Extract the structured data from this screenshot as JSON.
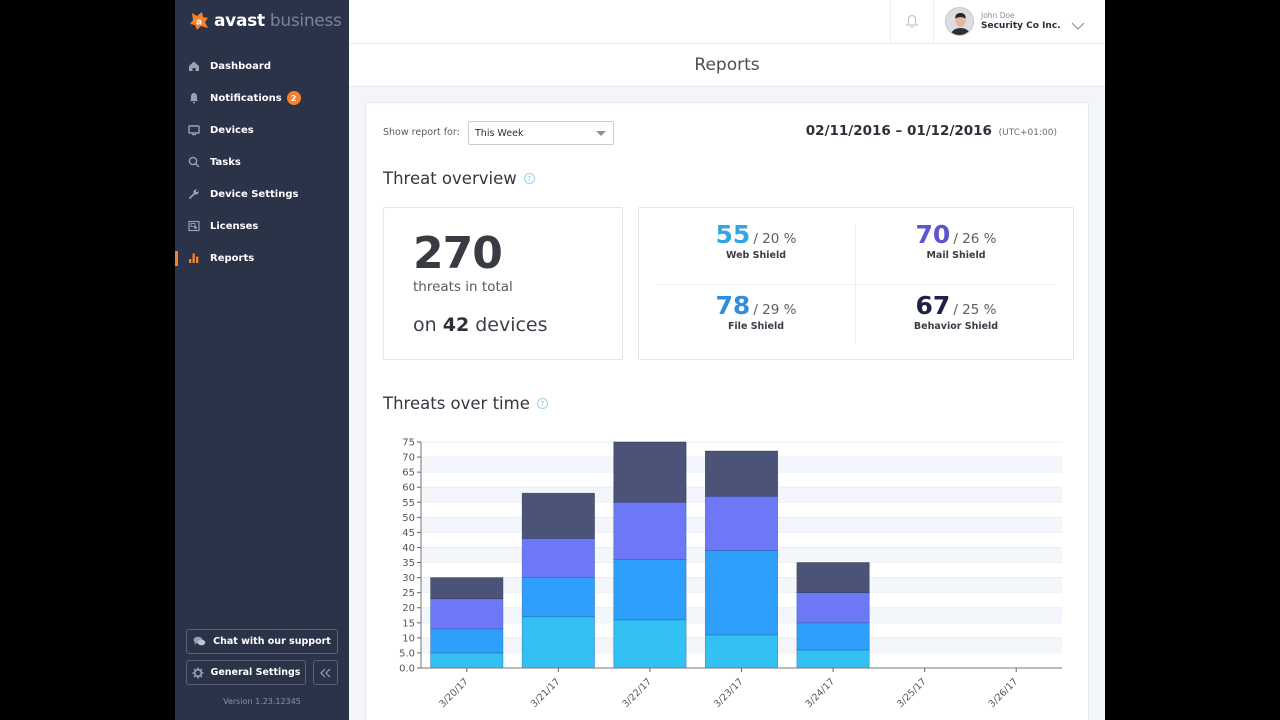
{
  "brand": {
    "name_part1": "avast",
    "name_part2": " business",
    "logo_letter": "a"
  },
  "sidebar": {
    "items": [
      {
        "label": "Dashboard",
        "icon": "home-icon",
        "active": false
      },
      {
        "label": "Notifications",
        "icon": "bell-icon",
        "active": false,
        "badge": "2"
      },
      {
        "label": "Devices",
        "icon": "monitor-icon",
        "active": false
      },
      {
        "label": "Tasks",
        "icon": "search-icon",
        "active": false
      },
      {
        "label": "Device Settings",
        "icon": "wrench-icon",
        "active": false
      },
      {
        "label": "Licenses",
        "icon": "license-icon",
        "active": false
      },
      {
        "label": "Reports",
        "icon": "bar-chart-icon",
        "active": true
      }
    ],
    "chat_button": "Chat with our support",
    "settings_button": "General Settings",
    "collapse_icon": "double-chevron-left-icon",
    "version": "Version 1.23.12345"
  },
  "topbar": {
    "user_name": "John Doe",
    "user_org": "Security Co Inc."
  },
  "page": {
    "title": "Reports"
  },
  "filter": {
    "label": "Show report for:",
    "selected": "This Week",
    "date_range": "02/11/2016 – 01/12/2016",
    "timezone": "(UTC+01:00)"
  },
  "threat_overview": {
    "title": "Threat overview",
    "help": "?",
    "total": "270",
    "total_label": "threats in total",
    "devices_prefix": "on ",
    "devices_count": "42",
    "devices_suffix": " devices",
    "shields": [
      {
        "value": "55",
        "percent": "/ 20 %",
        "name": "Web Shield",
        "color": "#32a6e0"
      },
      {
        "value": "70",
        "percent": "/ 26 %",
        "name": "Mail Shield",
        "color": "#5b55d2"
      },
      {
        "value": "78",
        "percent": "/ 29 %",
        "name": "File Shield",
        "color": "#2f8fdc"
      },
      {
        "value": "67",
        "percent": "/ 25 %",
        "name": "Behavior Shield",
        "color": "#1f2247"
      }
    ]
  },
  "threats_over_time": {
    "title": "Threats over time",
    "help": "?"
  },
  "chart_data": {
    "type": "bar",
    "stacked": true,
    "title": "Threats over time",
    "xlabel": "",
    "ylabel": "",
    "ylim": [
      0,
      75
    ],
    "yticks": [
      "0.0",
      "5.0",
      "10",
      "15",
      "20",
      "25",
      "30",
      "35",
      "40",
      "45",
      "50",
      "55",
      "60",
      "65",
      "70",
      "75"
    ],
    "categories": [
      "3/20/17",
      "3/21/17",
      "3/22/17",
      "3/23/17",
      "3/24/17",
      "3/25/17",
      "3/26/17"
    ],
    "grid": true,
    "series": [
      {
        "name": "Web Shield",
        "color": "#33c1f3",
        "values": [
          5,
          17,
          16,
          11,
          6,
          0,
          0
        ]
      },
      {
        "name": "File Shield",
        "color": "#2e9ffa",
        "values": [
          8,
          13,
          20,
          28,
          9,
          0,
          0
        ]
      },
      {
        "name": "Mail Shield",
        "color": "#6e77f5",
        "values": [
          10,
          13,
          19,
          18,
          10,
          0,
          0
        ]
      },
      {
        "name": "Behavior Shield",
        "color": "#4b5478",
        "values": [
          7,
          15,
          20,
          15,
          10,
          0,
          0
        ]
      }
    ]
  }
}
